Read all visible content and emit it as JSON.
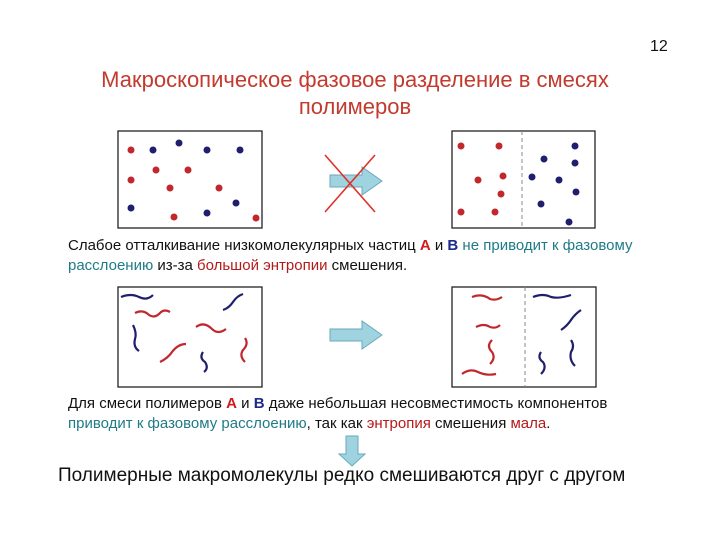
{
  "page_number": "12",
  "title": "Макроскопическое фазовое разделение в смесях полимеров",
  "paragraph1": {
    "t1": "Слабое отталкивание низкомолекулярных частиц ",
    "a": "A",
    "t2": " и ",
    "b": "B",
    "t3": " не приводит к фазовому расслоению",
    "t4": " из-за ",
    "t5": "большой энтропии",
    "t6": " смешения."
  },
  "paragraph2": {
    "t1": "Для смеси полимеров ",
    "a": "A",
    "t2": " и ",
    "b": "B",
    "t3": " даже небольшая несовместимость компонентов ",
    "t4": "приводит к фазовому расслоению",
    "t5": ", так как ",
    "t6": "энтропия",
    "t7": " смешения ",
    "t8": "мала",
    "t9": "."
  },
  "conclusion": "Полимерные макромолекулы редко смешиваются друг с другом",
  "colors": {
    "red": "#c0282d",
    "blue": "#1f1f6e",
    "arrow": "#9fd3e0"
  },
  "icons": [
    "right-arrow-icon",
    "cross-icon",
    "down-arrow-icon"
  ]
}
